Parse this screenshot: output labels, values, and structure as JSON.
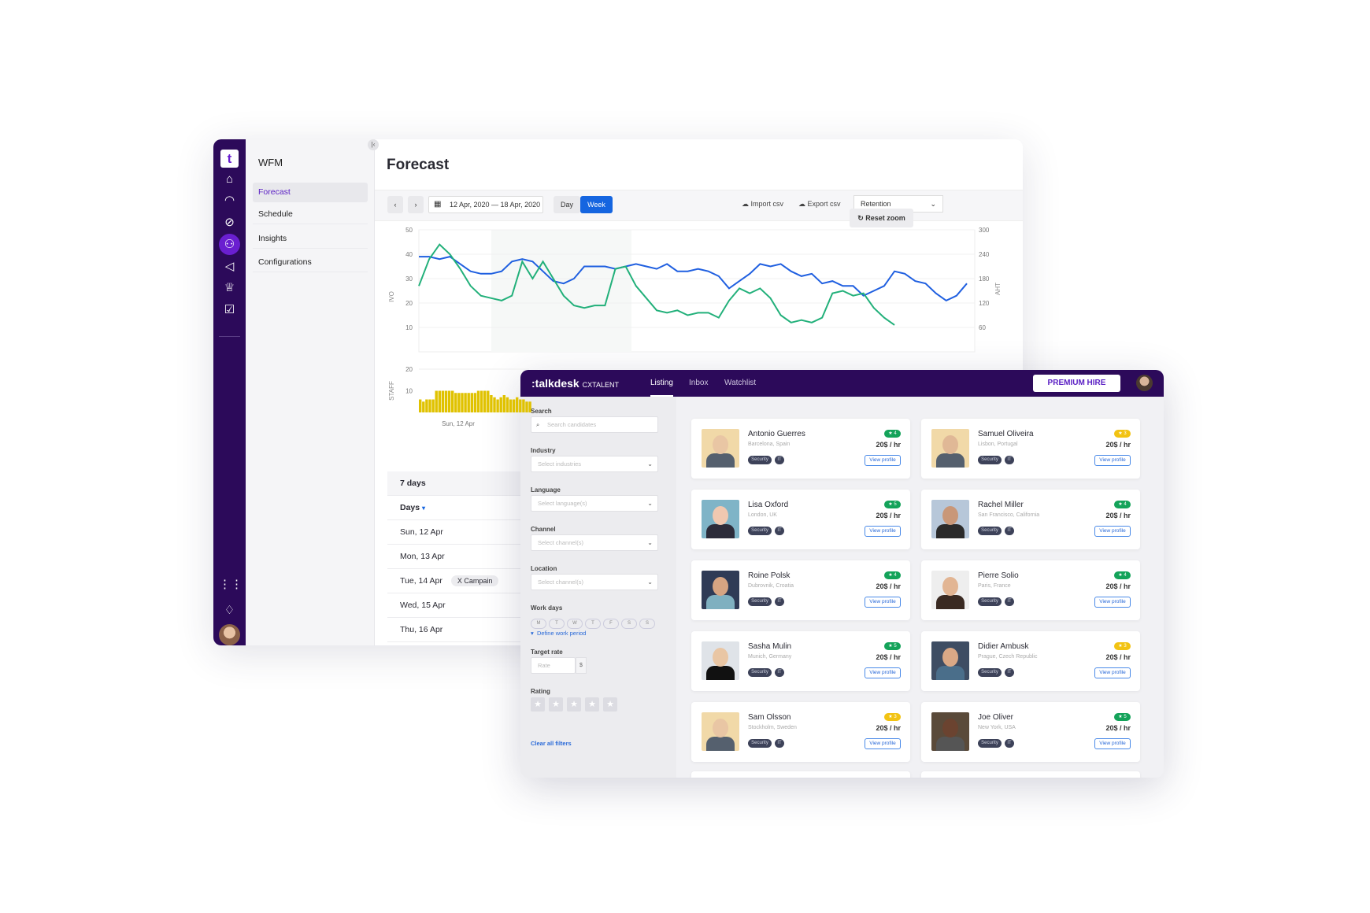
{
  "wfm": {
    "rail_icons": [
      "logo-icon",
      "home-icon",
      "gauge-icon",
      "compass-icon",
      "people-icon",
      "megaphone-icon",
      "trophy-icon",
      "clipboard-icon",
      "apps-grid-icon",
      "bell-icon"
    ],
    "section_title": "WFM",
    "nav_items": [
      {
        "label": "Forecast",
        "active": true
      },
      {
        "label": "Schedule"
      },
      {
        "label": "Insights"
      },
      {
        "label": "Configurations"
      }
    ],
    "page_title": "Forecast",
    "toolbar": {
      "date_range": "12 Apr, 2020 — 18 Apr, 2020",
      "view_day": "Day",
      "view_week": "Week",
      "active_view": "Week",
      "import_csv": "Import csv",
      "export_csv": "Export csv",
      "metric_select": "Retention",
      "reset_zoom": "Reset zoom"
    },
    "table": {
      "title": "7 days",
      "column": "Days",
      "rows": [
        {
          "day": "Sun, 12 Apr"
        },
        {
          "day": "Mon, 13 Apr"
        },
        {
          "day": "Tue, 14 Apr",
          "tag": "X Campain"
        },
        {
          "day": "Wed, 15 Apr"
        },
        {
          "day": "Thu, 16 Apr"
        }
      ]
    }
  },
  "chart_data": [
    {
      "type": "line",
      "ylabel": "IVO",
      "y2label": "AHT",
      "ylim": [
        0,
        50
      ],
      "yticks": [
        10,
        20,
        30,
        40,
        50
      ],
      "y2lim": [
        0,
        300
      ],
      "y2ticks": [
        60,
        120,
        180,
        240,
        300
      ],
      "grid": true,
      "series": [
        {
          "axis": "right",
          "color": "#1f5fe0",
          "values": [
            234,
            234,
            228,
            234,
            216,
            198,
            192,
            192,
            198,
            222,
            228,
            222,
            198,
            174,
            168,
            180,
            210,
            210,
            210,
            204,
            210,
            216,
            210,
            204,
            216,
            198,
            198,
            204,
            198,
            186,
            156,
            174,
            192,
            216,
            210,
            216,
            198,
            186,
            192,
            168,
            174,
            162,
            162,
            138,
            150,
            162,
            198,
            192,
            174,
            168,
            144,
            126,
            138,
            168
          ]
        },
        {
          "axis": "left",
          "color": "#22b07a",
          "values": [
            27,
            38,
            44,
            40,
            34,
            27,
            23,
            22,
            21,
            23,
            37,
            30,
            37,
            30,
            23,
            19,
            18,
            19,
            19,
            34,
            35,
            27,
            22,
            17,
            16,
            17,
            15,
            16,
            16,
            14,
            21,
            26,
            24,
            26,
            22,
            15,
            12,
            13,
            12,
            14,
            24,
            25,
            23,
            24,
            18,
            14,
            11
          ]
        }
      ]
    },
    {
      "type": "bar",
      "ylabel": "STAFF",
      "ylim": [
        0,
        20
      ],
      "yticks": [
        10,
        20
      ],
      "xtick": "Sun, 12 Apr",
      "color": "#e0c200",
      "values": [
        6,
        5,
        6,
        6,
        6,
        10,
        10,
        10,
        10,
        10,
        10,
        9,
        9,
        9,
        9,
        9,
        9,
        9,
        10,
        10,
        10,
        10,
        8,
        7,
        6,
        7,
        8,
        7,
        6,
        6,
        7,
        6,
        6,
        5,
        5
      ]
    }
  ],
  "cxtalent": {
    "brand": "talkdesk",
    "product": "CXTALENT",
    "tabs": [
      "Listing",
      "Inbox",
      "Watchlist"
    ],
    "active_tab": "Listing",
    "premium_button": "PREMIUM HIRE",
    "filters": {
      "search_label": "Search",
      "search_placeholder": "Search candidates",
      "industry_label": "Industry",
      "industry_placeholder": "Select industries",
      "language_label": "Language",
      "language_placeholder": "Select language(s)",
      "channel_label": "Channel",
      "channel_placeholder": "Select channel(s)",
      "location_label": "Location",
      "location_placeholder": "Select channel(s)",
      "workdays_label": "Work days",
      "workdays": [
        "M",
        "T",
        "W",
        "T",
        "F",
        "S",
        "S"
      ],
      "define_period": "Define work period",
      "target_rate_label": "Target rate",
      "rate_placeholder": "Rate",
      "currency": "$",
      "rating_label": "Rating",
      "rating_stars": 5,
      "clear": "Clear all filters"
    },
    "candidates": [
      {
        "name": "Antonio Guerres",
        "location": "Barcelona, Spain",
        "rating": "4",
        "rating_color": "#14a35a",
        "rate": "20$ / hr",
        "tags": [
          "Security",
          "IT"
        ],
        "action": "View profile"
      },
      {
        "name": "Samuel Oliveira",
        "location": "Lisbon, Portugal",
        "rating": "3",
        "rating_color": "#f2c313",
        "rate": "20$ / hr",
        "tags": [
          "Security",
          "IT"
        ],
        "action": "View profile"
      },
      {
        "name": "Lisa Oxford",
        "location": "London, UK",
        "rating": "5",
        "rating_color": "#14a35a",
        "rate": "20$ / hr",
        "tags": [
          "Security",
          "IT"
        ],
        "action": "View profile"
      },
      {
        "name": "Rachel Miller",
        "location": "San Francisco, California",
        "rating": "4",
        "rating_color": "#14a35a",
        "rate": "20$ / hr",
        "tags": [
          "Security",
          "IT"
        ],
        "action": "View profile"
      },
      {
        "name": "Roine Polsk",
        "location": "Dubrovnik, Croatia",
        "rating": "4",
        "rating_color": "#14a35a",
        "rate": "20$ / hr",
        "tags": [
          "Security",
          "IT"
        ],
        "action": "View profile"
      },
      {
        "name": "Pierre Solio",
        "location": "Paris, France",
        "rating": "4",
        "rating_color": "#14a35a",
        "rate": "20$ / hr",
        "tags": [
          "Security",
          "IT"
        ],
        "action": "View profile"
      },
      {
        "name": "Sasha Mulin",
        "location": "Munich, Germany",
        "rating": "5",
        "rating_color": "#14a35a",
        "rate": "20$ / hr",
        "tags": [
          "Security",
          "IT"
        ],
        "action": "View profile"
      },
      {
        "name": "Didier Ambusk",
        "location": "Prague, Czech Republic",
        "rating": "3",
        "rating_color": "#f2c313",
        "rate": "20$ / hr",
        "tags": [
          "Security",
          "IT"
        ],
        "action": "View profile"
      },
      {
        "name": "Sam Olsson",
        "location": "Stockholm, Sweden",
        "rating": "3",
        "rating_color": "#f2c313",
        "rate": "20$ / hr",
        "tags": [
          "Security",
          "IT"
        ],
        "action": "View profile"
      },
      {
        "name": "Joe Oliver",
        "location": "New York, USA",
        "rating": "5",
        "rating_color": "#14a35a",
        "rate": "20$ / hr",
        "tags": [
          "Security",
          "IT"
        ],
        "action": "View profile"
      }
    ]
  }
}
